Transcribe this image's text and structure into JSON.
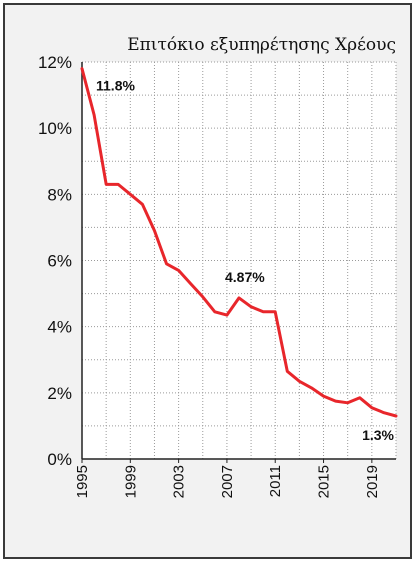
{
  "chart_data": {
    "type": "line",
    "title": "Επιτόκιο εξυπηρέτησης Χρέους",
    "xlabel": "",
    "ylabel": "",
    "xlim": [
      1995,
      2021
    ],
    "ylim": [
      0,
      12
    ],
    "x_ticks": [
      "1995",
      "1999",
      "2003",
      "2007",
      "2011",
      "2015",
      "2019"
    ],
    "y_ticks": [
      "0%",
      "2%",
      "4%",
      "6%",
      "8%",
      "10%",
      "12%"
    ],
    "grid": true,
    "legend": "none",
    "series": [
      {
        "color": "#e8262b",
        "x": [
          1995,
          1996,
          1997,
          1998,
          1999,
          2000,
          2001,
          2002,
          2003,
          2004,
          2005,
          2006,
          2007,
          2008,
          2009,
          2010,
          2011,
          2012,
          2013,
          2014,
          2015,
          2016,
          2017,
          2018,
          2019,
          2020,
          2021
        ],
        "values": [
          11.8,
          10.4,
          8.3,
          8.3,
          8.0,
          7.7,
          6.9,
          5.9,
          5.7,
          5.3,
          4.9,
          4.45,
          4.35,
          4.87,
          4.6,
          4.45,
          4.45,
          2.65,
          2.35,
          2.15,
          1.9,
          1.75,
          1.7,
          1.85,
          1.55,
          1.4,
          1.3
        ]
      }
    ],
    "annotations": [
      {
        "text": "11.8%",
        "x": 1995,
        "y": 11.8
      },
      {
        "text": "4.87%",
        "x": 2008,
        "y": 4.87
      },
      {
        "text": "1.3%",
        "x": 2021,
        "y": 1.3
      }
    ]
  }
}
